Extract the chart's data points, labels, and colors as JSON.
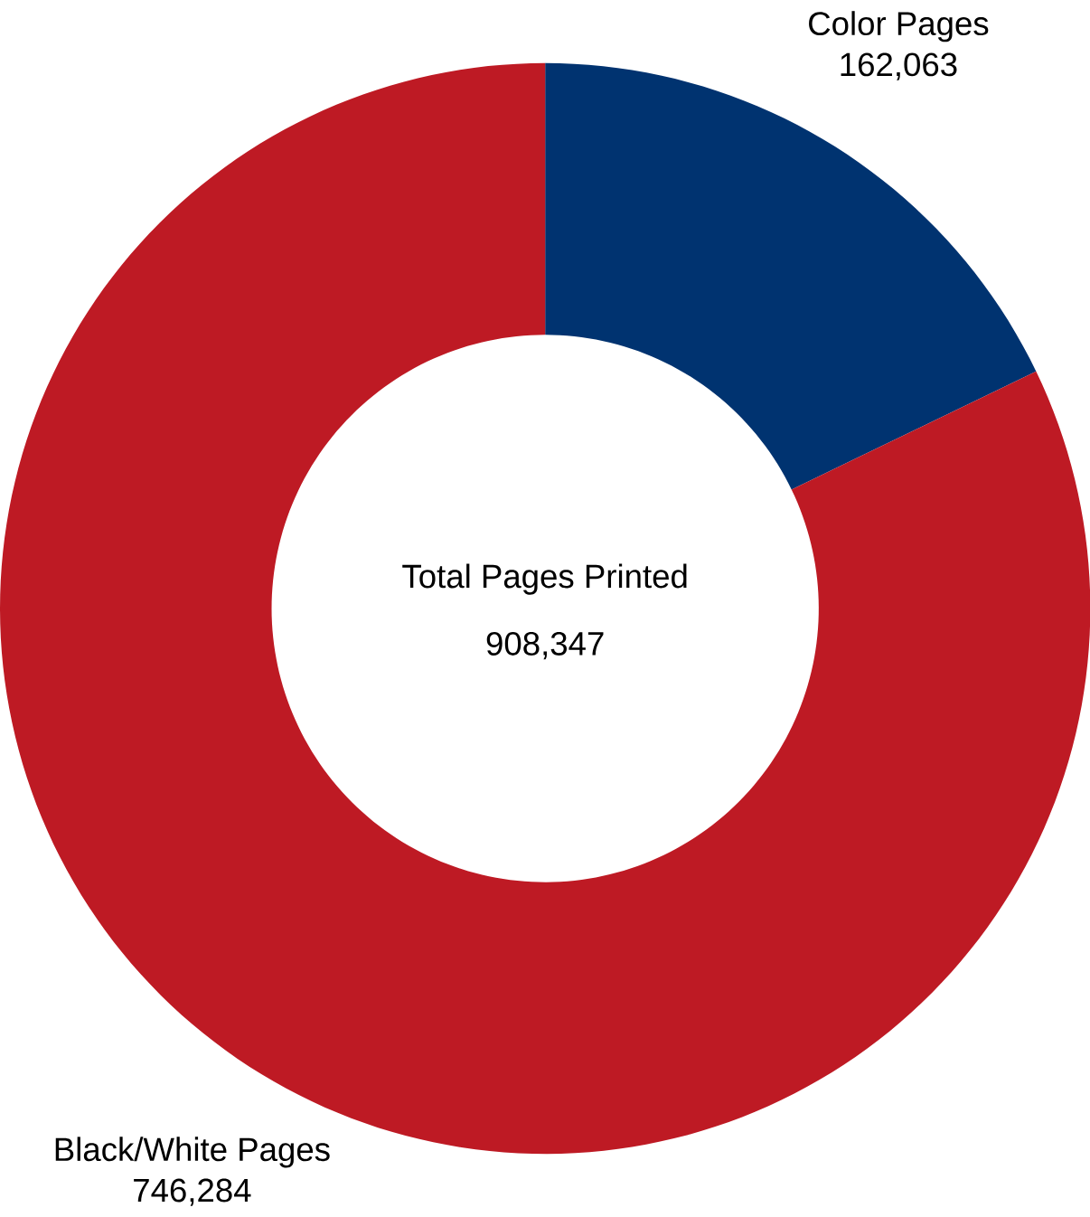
{
  "chart_data": {
    "type": "donut",
    "title": "Total Pages Printed",
    "annotations": [
      "908,347"
    ],
    "categories": [
      "Color Pages",
      "Black/White Pages"
    ],
    "values": [
      162063,
      746284
    ],
    "value_labels": [
      "162,063",
      "746,284"
    ],
    "colors": [
      "#003370",
      "#be1a24"
    ]
  }
}
